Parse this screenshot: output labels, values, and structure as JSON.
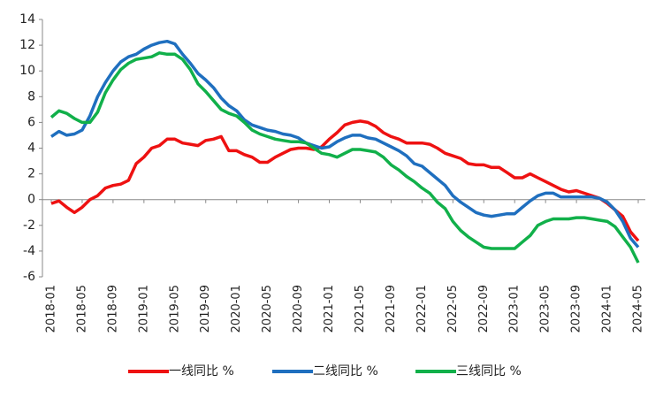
{
  "chart_data": {
    "type": "line",
    "categories": [
      "2018-01",
      null,
      null,
      null,
      "2018-05",
      null,
      null,
      null,
      "2018-09",
      null,
      null,
      null,
      "2019-01",
      null,
      null,
      null,
      "2019-05",
      null,
      null,
      null,
      "2019-09",
      null,
      null,
      null,
      "2020-01",
      null,
      null,
      null,
      "2020-05",
      null,
      null,
      null,
      "2020-09",
      null,
      null,
      null,
      "2021-01",
      null,
      null,
      null,
      "2021-05",
      null,
      null,
      null,
      "2021-09",
      null,
      null,
      null,
      "2022-01",
      null,
      null,
      null,
      "2022-05",
      null,
      null,
      null,
      "2022-09",
      null,
      null,
      null,
      "2023-01",
      null,
      null,
      null,
      "2023-05",
      null,
      null,
      null,
      "2023-09",
      null,
      null,
      null,
      "2024-01",
      null,
      null,
      null,
      "2024-05"
    ],
    "series": [
      {
        "name": "一线同比 %",
        "color": "#ee1111",
        "values": [
          -0.3,
          -0.1,
          -0.6,
          -1.0,
          -0.6,
          0,
          0.3,
          0.9,
          1.1,
          1.2,
          1.5,
          2.8,
          3.3,
          4.0,
          4.2,
          4.7,
          4.7,
          4.4,
          4.3,
          4.2,
          4.6,
          4.7,
          4.9,
          3.8,
          3.8,
          3.5,
          3.3,
          2.9,
          2.9,
          3.3,
          3.6,
          3.9,
          4.0,
          4.0,
          3.9,
          4.1,
          4.7,
          5.2,
          5.8,
          6.0,
          6.1,
          6.0,
          5.7,
          5.2,
          4.9,
          4.7,
          4.4,
          4.4,
          4.4,
          4.3,
          4.0,
          3.6,
          3.4,
          3.2,
          2.8,
          2.7,
          2.7,
          2.5,
          2.5,
          2.1,
          1.7,
          1.7,
          2.0,
          1.7,
          1.4,
          1.1,
          0.8,
          0.6,
          0.7,
          0.5,
          0.3,
          0.1,
          -0.3,
          -0.8,
          -1.3,
          -2.5,
          -3.2
        ]
      },
      {
        "name": "二线同比 %",
        "color": "#1f6fbf",
        "values": [
          4.9,
          5.3,
          5.0,
          5.1,
          5.4,
          6.5,
          8.0,
          9.1,
          10.0,
          10.7,
          11.1,
          11.3,
          11.7,
          12.0,
          12.2,
          12.3,
          12.1,
          11.3,
          10.6,
          9.8,
          9.3,
          8.7,
          7.9,
          7.3,
          6.9,
          6.2,
          5.8,
          5.6,
          5.4,
          5.3,
          5.1,
          5.0,
          4.8,
          4.4,
          4.2,
          4.0,
          4.1,
          4.5,
          4.8,
          5.0,
          5.0,
          4.8,
          4.7,
          4.4,
          4.1,
          3.8,
          3.4,
          2.8,
          2.6,
          2.1,
          1.6,
          1.1,
          0.3,
          -0.2,
          -0.6,
          -1.0,
          -1.2,
          -1.3,
          -1.2,
          -1.1,
          -1.1,
          -0.6,
          -0.1,
          0.3,
          0.5,
          0.5,
          0.2,
          0.2,
          0.2,
          0.2,
          0.2,
          0.1,
          -0.2,
          -0.8,
          -1.7,
          -3.0,
          -3.7
        ]
      },
      {
        "name": "三线同比 %",
        "color": "#11b04a",
        "values": [
          6.4,
          6.9,
          6.7,
          6.3,
          6.0,
          6.0,
          6.8,
          8.3,
          9.3,
          10.1,
          10.6,
          10.9,
          11.0,
          11.1,
          11.4,
          11.3,
          11.3,
          10.9,
          10.1,
          9.0,
          8.4,
          7.7,
          7.0,
          6.7,
          6.5,
          6.0,
          5.4,
          5.1,
          4.9,
          4.7,
          4.6,
          4.5,
          4.5,
          4.4,
          4.0,
          3.6,
          3.5,
          3.3,
          3.6,
          3.9,
          3.9,
          3.8,
          3.7,
          3.3,
          2.7,
          2.3,
          1.8,
          1.4,
          0.9,
          0.5,
          -0.2,
          -0.7,
          -1.7,
          -2.4,
          -2.9,
          -3.3,
          -3.7,
          -3.8,
          -3.8,
          -3.8,
          -3.8,
          -3.3,
          -2.8,
          -2.0,
          -1.7,
          -1.5,
          -1.5,
          -1.5,
          -1.4,
          -1.4,
          -1.5,
          -1.6,
          -1.7,
          -2.1,
          -2.9,
          -3.7,
          -4.9
        ]
      }
    ],
    "ylim": [
      -6,
      14
    ],
    "yticks": [
      -6,
      -4,
      -2,
      0,
      2,
      4,
      6,
      8,
      10,
      12,
      14
    ],
    "grid": false
  }
}
